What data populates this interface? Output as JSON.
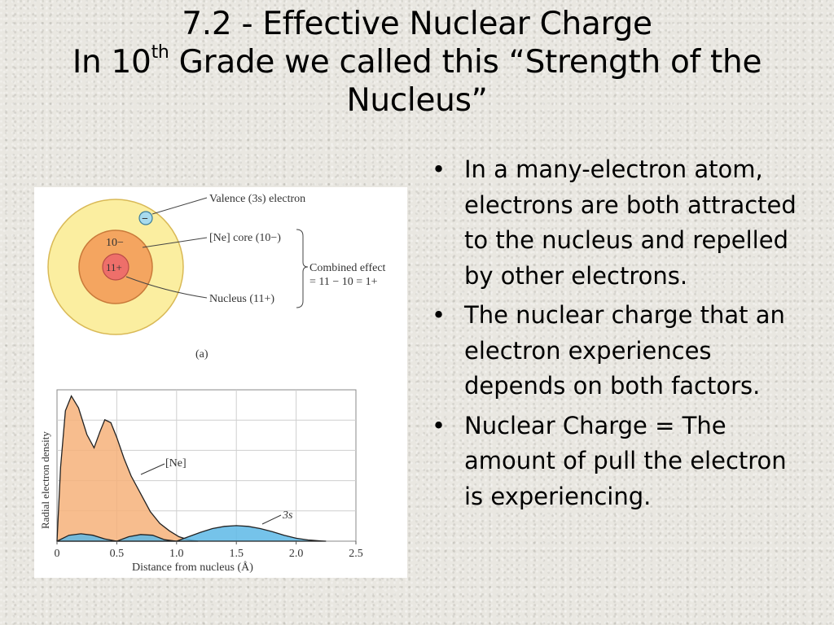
{
  "title": {
    "line1": "7.2 - Effective Nuclear Charge",
    "line2_prefix": "In 10",
    "line2_sup": "th",
    "line2_suffix": " Grade we called this “Strength of the",
    "line3": "Nucleus”"
  },
  "bullets": [
    {
      "text": "In a many-electron atom, electrons are both attracted to the nucleus and repelled by other electrons."
    },
    {
      "text": "The nuclear charge that an electron experiences depends on both factors."
    },
    {
      "text": "Nuclear Charge = The amount of pull the electron is experiencing."
    }
  ],
  "bullet_glyph": "•",
  "diagram": {
    "valence_label": "Valence (3s) electron",
    "valence_charge": "−",
    "core_label": "[Ne] core (10−)",
    "core_charge": "10−",
    "nucleus_label": "Nucleus (11+)",
    "nucleus_charge": "11+",
    "combined_line1": "Combined effect",
    "combined_line2": "= 11 − 10 = 1+",
    "panel_label": "(a)",
    "colors": {
      "shell": "#fbeea0",
      "core": "#f4a560",
      "nucleus": "#ee6f6a",
      "electron": "#a8dbee"
    }
  },
  "chart_data": {
    "type": "area",
    "ylabel": "Radial electron density",
    "xlabel": "Distance from nucleus (Å)",
    "xlim": [
      0,
      2.5
    ],
    "xticks": [
      0,
      0.5,
      1.0,
      1.5,
      2.0,
      2.5
    ],
    "xtick_labels": [
      "0",
      "0.5",
      "1.0",
      "1.5",
      "2.0",
      "2.5"
    ],
    "ylim": [
      0,
      1
    ],
    "grid": true,
    "series": [
      {
        "name": "[Ne]",
        "color": "#f6b27a",
        "x": [
          0,
          0.03,
          0.07,
          0.12,
          0.18,
          0.25,
          0.31,
          0.36,
          0.4,
          0.45,
          0.5,
          0.56,
          0.62,
          0.7,
          0.78,
          0.86,
          0.94,
          1.02,
          1.1,
          1.18
        ],
        "y": [
          0.0,
          0.5,
          0.88,
          0.98,
          0.9,
          0.72,
          0.63,
          0.74,
          0.82,
          0.8,
          0.7,
          0.56,
          0.44,
          0.32,
          0.2,
          0.12,
          0.07,
          0.03,
          0.01,
          0.0
        ]
      },
      {
        "name": "3s",
        "color": "#5db8e6",
        "x": [
          0,
          0.1,
          0.2,
          0.3,
          0.4,
          0.5,
          0.6,
          0.7,
          0.8,
          0.9,
          1.0,
          1.1,
          1.2,
          1.3,
          1.4,
          1.5,
          1.6,
          1.7,
          1.8,
          1.9,
          2.0,
          2.1,
          2.2,
          2.25
        ],
        "y": [
          0.0,
          0.04,
          0.05,
          0.04,
          0.015,
          0.0,
          0.03,
          0.045,
          0.04,
          0.01,
          0.0,
          0.03,
          0.06,
          0.085,
          0.1,
          0.105,
          0.1,
          0.085,
          0.065,
          0.04,
          0.02,
          0.008,
          0.002,
          0.0
        ]
      }
    ],
    "labels": {
      "ne": "[Ne]",
      "s3": "3s"
    }
  }
}
